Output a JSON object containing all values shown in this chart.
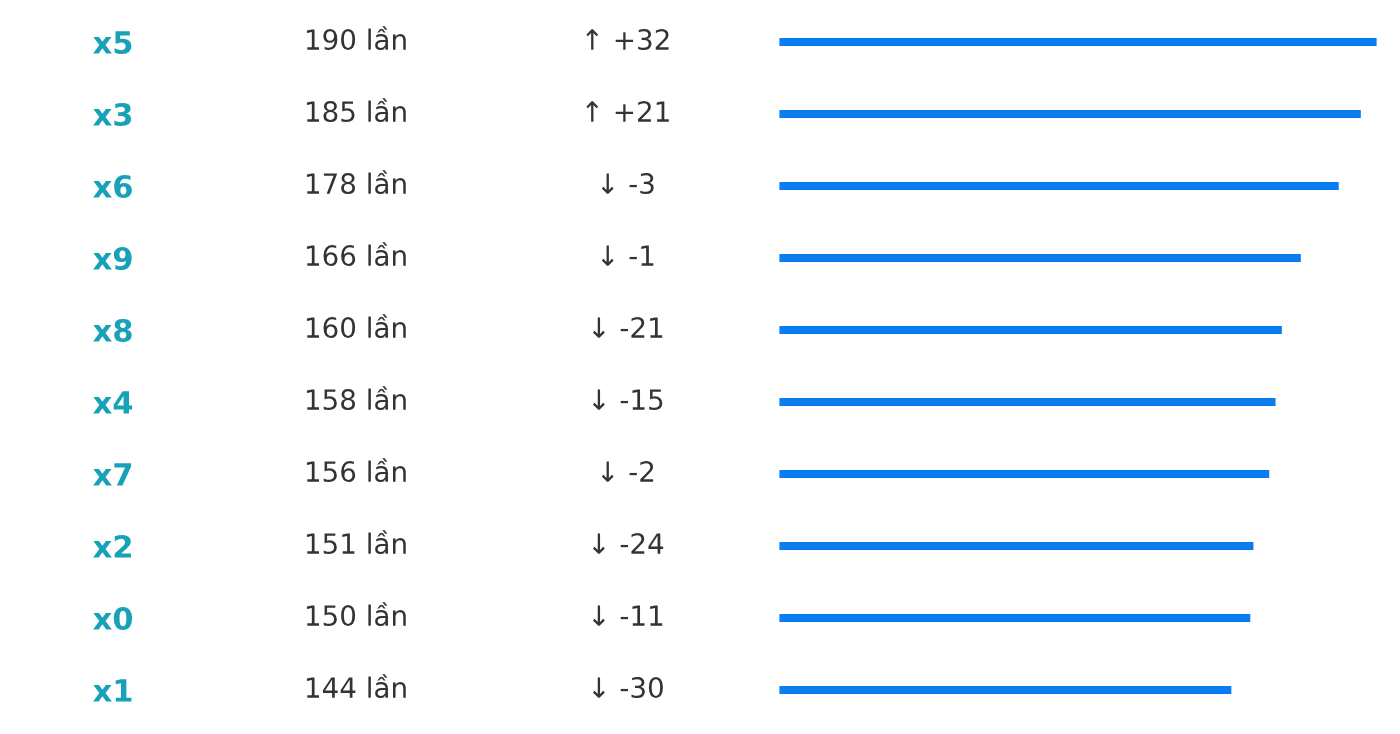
{
  "chart_data": {
    "type": "bar",
    "orientation": "horizontal",
    "categories": [
      "x5",
      "x3",
      "x6",
      "x9",
      "x8",
      "x4",
      "x7",
      "x2",
      "x0",
      "x1"
    ],
    "values": [
      190,
      185,
      178,
      166,
      160,
      158,
      156,
      151,
      150,
      144
    ],
    "value_labels": [
      "190 lần",
      "185 lần",
      "178 lần",
      "166 lần",
      "160 lần",
      "158 lần",
      "156 lần",
      "151 lần",
      "150 lần",
      "144 lần"
    ],
    "color": "#0a7cf0",
    "annotations": [
      "↑ +32",
      "↑ +21",
      "↓ -3",
      "↓ -1",
      "↓ -21",
      "↓ -15",
      "↓ -2",
      "↓ -24",
      "↓ -11",
      "↓ -30"
    ]
  }
}
